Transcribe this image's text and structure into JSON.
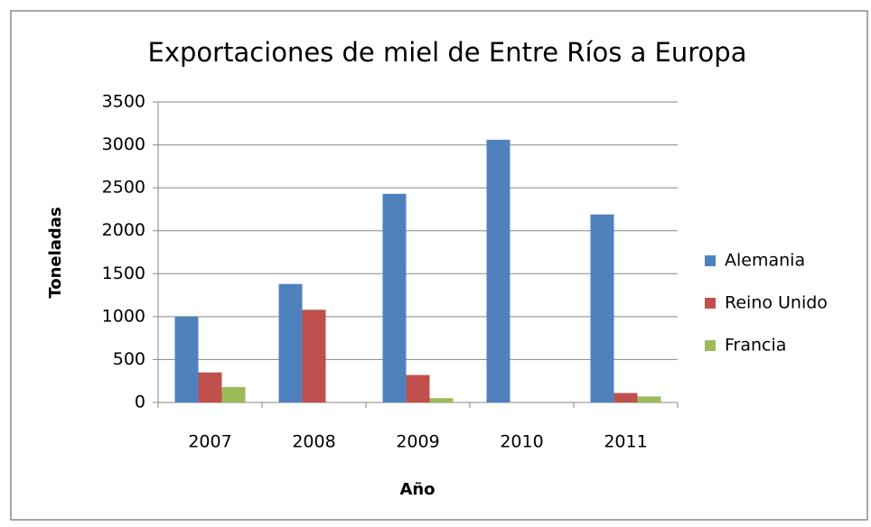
{
  "chart_data": {
    "type": "bar",
    "title": "Exportaciones de miel de Entre Ríos a Europa",
    "x_label": "Año",
    "y_label": "Toneladas",
    "categories": [
      "2007",
      "2008",
      "2009",
      "2010",
      "2011"
    ],
    "series": [
      {
        "name": "Alemania",
        "color": "#4f81bd",
        "values": [
          1000,
          1380,
          2430,
          3060,
          2190
        ]
      },
      {
        "name": "Reino Unido",
        "color": "#c0504d",
        "values": [
          350,
          1080,
          320,
          0,
          110
        ]
      },
      {
        "name": "Francia",
        "color": "#9bbb59",
        "values": [
          180,
          0,
          50,
          0,
          70
        ]
      }
    ],
    "ylim": [
      0,
      3500
    ],
    "yticks": [
      0,
      500,
      1000,
      1500,
      2000,
      2500,
      3000,
      3500
    ],
    "grid": true,
    "legend": "right"
  }
}
